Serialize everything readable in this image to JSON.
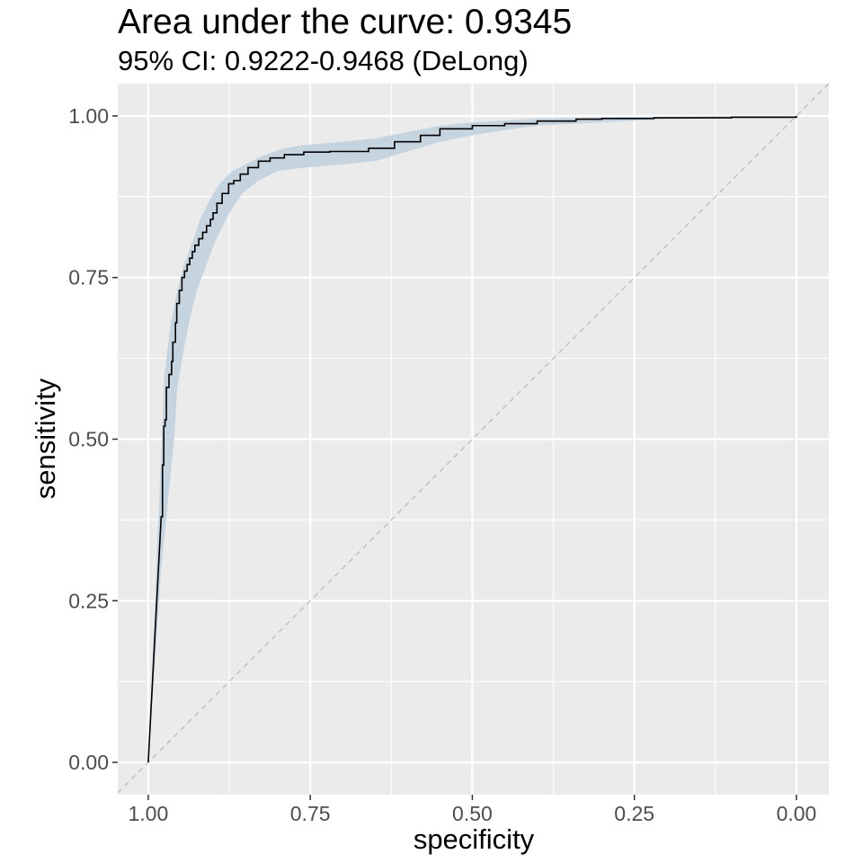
{
  "chart_data": {
    "type": "line",
    "title": "Area under the curve: 0.9345",
    "subtitle": "95% CI: 0.9222-0.9468 (DeLong)",
    "xlabel": "specificity",
    "ylabel": "sensitivity",
    "x_reversed": true,
    "xlim": [
      1.047,
      -0.05
    ],
    "ylim": [
      -0.05,
      1.05
    ],
    "x_ticks": [
      {
        "value": 1.0,
        "label": "1.00"
      },
      {
        "value": 0.75,
        "label": "0.75"
      },
      {
        "value": 0.5,
        "label": "0.50"
      },
      {
        "value": 0.25,
        "label": "0.25"
      },
      {
        "value": 0.0,
        "label": "0.00"
      }
    ],
    "y_ticks": [
      {
        "value": 0.0,
        "label": "0.00"
      },
      {
        "value": 0.25,
        "label": "0.25"
      },
      {
        "value": 0.5,
        "label": "0.50"
      },
      {
        "value": 0.75,
        "label": "0.75"
      },
      {
        "value": 1.0,
        "label": "1.00"
      }
    ],
    "grid": true,
    "colors": {
      "panel": "#ebebeb",
      "grid": "#ffffff",
      "ci_band": "#c6d4e0",
      "curve": "#000000",
      "reference": "#bfbfbf"
    },
    "reference_line": [
      [
        1.0,
        0.0
      ],
      [
        0.0,
        1.0
      ]
    ],
    "series": [
      {
        "kind": "roc_curve",
        "x": [
          1.0,
          0.98,
          0.978,
          0.976,
          0.974,
          0.972,
          0.968,
          0.964,
          0.962,
          0.958,
          0.956,
          0.952,
          0.948,
          0.944,
          0.94,
          0.936,
          0.932,
          0.928,
          0.922,
          0.916,
          0.91,
          0.904,
          0.9,
          0.894,
          0.886,
          0.876,
          0.868,
          0.858,
          0.846,
          0.83,
          0.812,
          0.79,
          0.76,
          0.72,
          0.66,
          0.62,
          0.58,
          0.55,
          0.5,
          0.45,
          0.4,
          0.34,
          0.3,
          0.22,
          0.1,
          0.0
        ],
        "y": [
          0.0,
          0.38,
          0.46,
          0.52,
          0.53,
          0.58,
          0.6,
          0.62,
          0.65,
          0.68,
          0.71,
          0.73,
          0.75,
          0.76,
          0.77,
          0.78,
          0.79,
          0.8,
          0.81,
          0.82,
          0.83,
          0.84,
          0.85,
          0.865,
          0.88,
          0.895,
          0.9,
          0.91,
          0.92,
          0.93,
          0.935,
          0.94,
          0.944,
          0.945,
          0.95,
          0.96,
          0.97,
          0.98,
          0.985,
          0.988,
          0.992,
          0.995,
          0.996,
          0.997,
          0.998,
          1.0
        ]
      },
      {
        "kind": "ci_upper",
        "x": [
          1.0,
          0.975,
          0.965,
          0.955,
          0.945,
          0.93,
          0.92,
          0.905,
          0.89,
          0.87,
          0.85,
          0.82,
          0.79,
          0.76,
          0.7,
          0.65,
          0.6,
          0.55,
          0.5,
          0.45,
          0.4,
          0.3,
          0.2,
          0.1,
          0.0
        ],
        "y": [
          0.0,
          0.6,
          0.68,
          0.73,
          0.77,
          0.81,
          0.84,
          0.87,
          0.895,
          0.915,
          0.925,
          0.94,
          0.95,
          0.955,
          0.96,
          0.965,
          0.975,
          0.985,
          0.99,
          0.993,
          0.996,
          0.998,
          0.999,
          1.0,
          1.0
        ]
      },
      {
        "kind": "ci_lower",
        "x": [
          1.0,
          0.98,
          0.97,
          0.96,
          0.955,
          0.945,
          0.935,
          0.925,
          0.91,
          0.895,
          0.875,
          0.855,
          0.83,
          0.8,
          0.76,
          0.7,
          0.65,
          0.6,
          0.55,
          0.5,
          0.45,
          0.4,
          0.3,
          0.2,
          0.1,
          0.0
        ],
        "y": [
          0.0,
          0.3,
          0.4,
          0.5,
          0.58,
          0.64,
          0.69,
          0.73,
          0.77,
          0.81,
          0.85,
          0.88,
          0.9,
          0.915,
          0.92,
          0.925,
          0.93,
          0.945,
          0.96,
          0.97,
          0.978,
          0.985,
          0.99,
          0.995,
          0.997,
          0.998
        ]
      }
    ]
  }
}
